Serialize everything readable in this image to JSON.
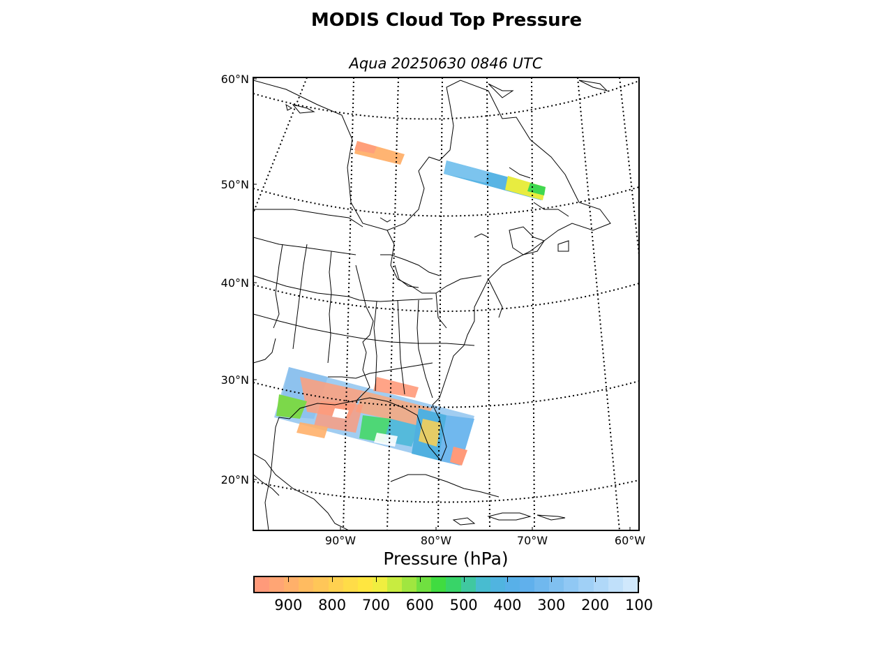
{
  "title": "MODIS Cloud Top Pressure",
  "subtitle": "Aqua 20250630 0846 UTC",
  "lat_labels": [
    "60°N",
    "50°N",
    "40°N",
    "30°N",
    "20°N"
  ],
  "lon_labels": [
    "90°W",
    "80°W",
    "70°W",
    "60°W"
  ],
  "colorbar": {
    "title": "Pressure (hPa)",
    "tick_labels": [
      "900",
      "800",
      "700",
      "600",
      "500",
      "400",
      "300",
      "200",
      "100"
    ],
    "range": [
      980,
      100
    ],
    "colors": [
      "#ff9a7a",
      "#ffa574",
      "#ffb06a",
      "#ffbb60",
      "#ffc658",
      "#ffd150",
      "#ffdc48",
      "#ffe640",
      "#f0ee40",
      "#c8ec40",
      "#a0e640",
      "#70e040",
      "#40dc40",
      "#38d468",
      "#40c8a0",
      "#48bcd0",
      "#50b4e0",
      "#58b0e8",
      "#60b0ec",
      "#70b8ee",
      "#80c0f0",
      "#90c8f4",
      "#a0d0f6",
      "#b0d8f8",
      "#c0e0fa",
      "#d0e8fc"
    ]
  }
}
